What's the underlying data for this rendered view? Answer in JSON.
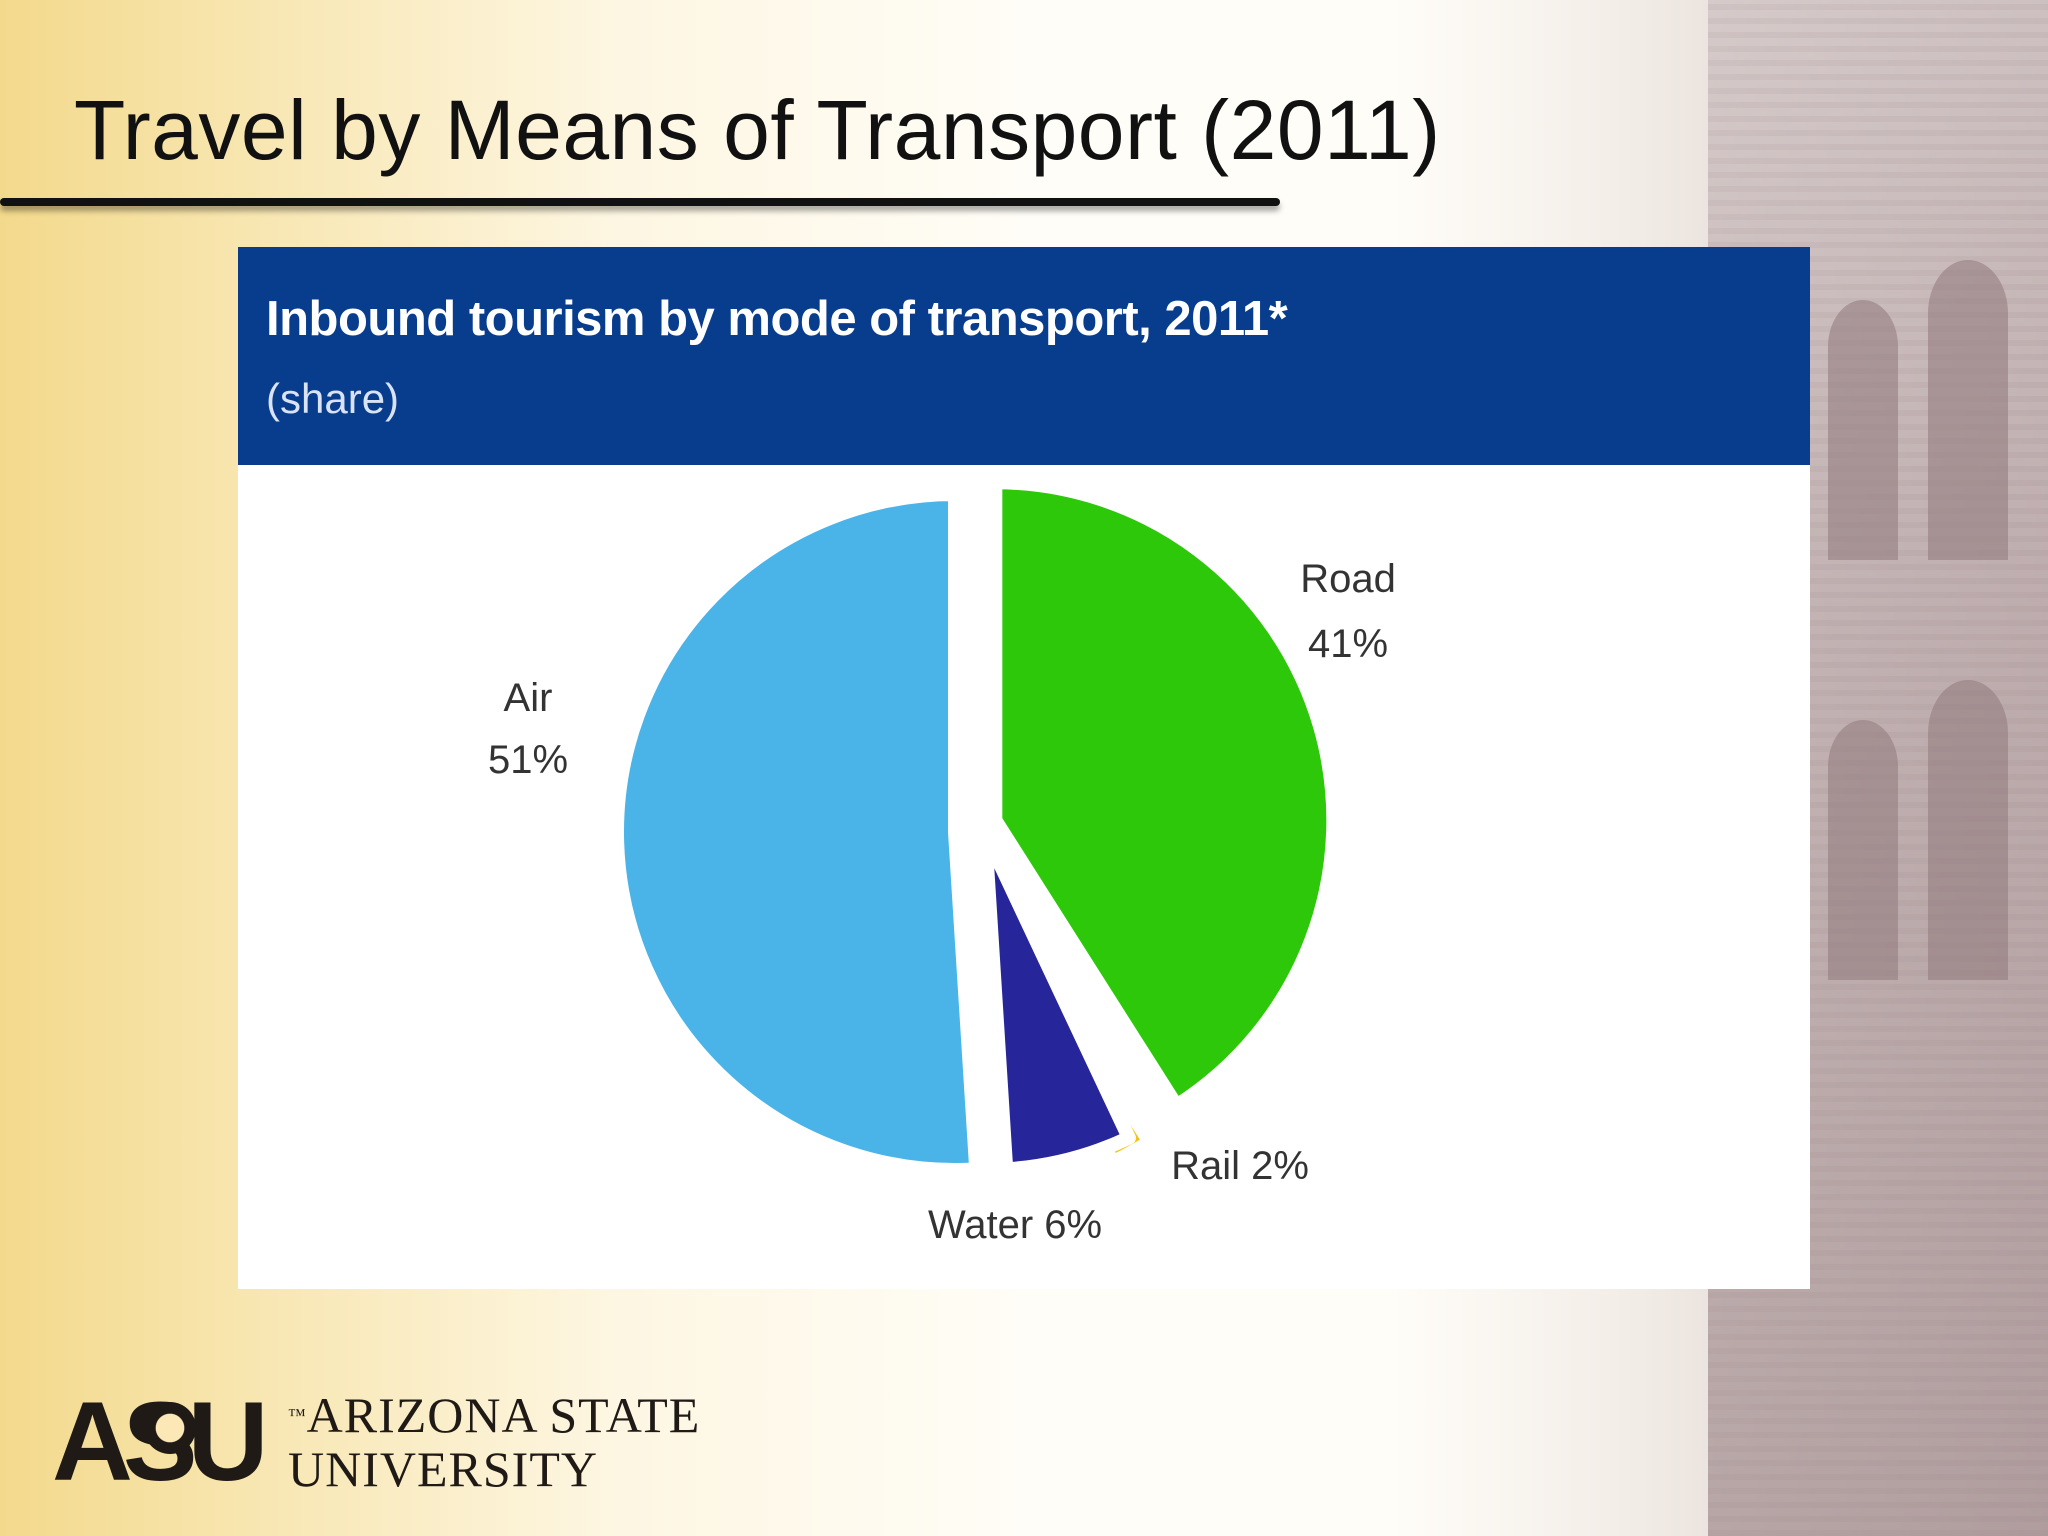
{
  "slide": {
    "title": "Travel by Means of Transport (2011)"
  },
  "figure": {
    "title": "Inbound tourism by mode of transport, 2011*",
    "subtitle": "(share)"
  },
  "chart_data": {
    "type": "pie",
    "title": "Inbound tourism by mode of transport, 2011*",
    "subtitle": "(share)",
    "slices": [
      {
        "name": "Road",
        "value": 41,
        "label": "41%",
        "color": "#2ec80b"
      },
      {
        "name": "Rail",
        "value": 2,
        "label": "Rail 2%",
        "color": "#f7c113"
      },
      {
        "name": "Water",
        "value": 6,
        "label": "Water 6%",
        "color": "#26259a"
      },
      {
        "name": "Air",
        "value": 51,
        "label": "51%",
        "color": "#4ab4e8"
      }
    ]
  },
  "logo": {
    "mark": "ASU",
    "line1": "ARIZONA STATE",
    "line2": "UNIVERSITY",
    "tm": "™"
  },
  "colors": {
    "header_blue": "#083d8e",
    "title_text": "#111111"
  }
}
